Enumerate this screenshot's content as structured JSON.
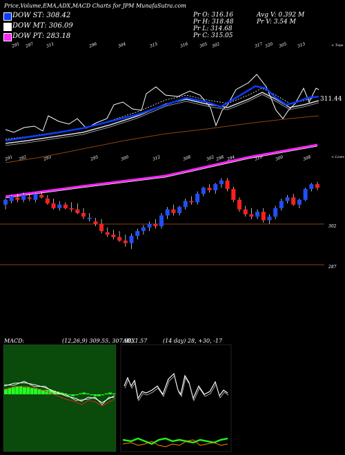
{
  "header": {
    "title": "Price,Volume,EMA,ADX,MACD Charts for JPM MunafaSutra.com"
  },
  "legend": [
    {
      "label": "DOW ST: 308.42",
      "color": "#0a3cff"
    },
    {
      "label": "DOW MT: 306.09",
      "color": "#ffffff"
    },
    {
      "label": "DOW PT: 283.18",
      "color": "#ff22ff"
    }
  ],
  "ohlc_stats": {
    "pr_o": "Pr   O: 316.16",
    "pr_h": "Pr   H: 318.48",
    "pr_l": "Pr   L: 314.68",
    "pr_c": "Pr   C: 315.05",
    "avg_v": "Avg V: 0.392  M",
    "pr_v": "Pr   V: 3.54  M"
  },
  "ema_panel": {
    "top_labels": [
      "291",
      "297",
      "311",
      "296",
      "304",
      "315",
      "316",
      "305",
      "302",
      "317",
      "320",
      "305",
      "313"
    ],
    "mid_labels": [
      "291",
      "292",
      "293",
      "295",
      "300",
      "312",
      "308",
      "302",
      "298",
      "294",
      "310",
      "300",
      "308"
    ],
    "right_top_label": "< Tops",
    "right_low_label": "< Lows",
    "last_value": "311.44"
  },
  "price_panel": {
    "level_labels": [
      "302",
      "287"
    ]
  },
  "macd_panel": {
    "title": "MACD:",
    "params": "(12,26,9) 309.55, 307.98, 1.57"
  },
  "adx_panel": {
    "title": "ADX",
    "params": "(14 day) 28, +30, -17"
  },
  "chart_data": [
    {
      "type": "line",
      "name": "EMA panel",
      "series": [
        {
          "name": "DOW ST",
          "color": "#0a3cff"
        },
        {
          "name": "DOW MT",
          "color": "#ffffff"
        },
        {
          "name": "DOW PT",
          "color": "#ff22ff"
        }
      ]
    },
    {
      "type": "candlestick",
      "name": "Price panel",
      "candles": [
        {
          "o": 282,
          "h": 287,
          "l": 278,
          "c": 286
        },
        {
          "o": 285,
          "h": 290,
          "l": 283,
          "c": 289
        },
        {
          "o": 288,
          "h": 291,
          "l": 284,
          "c": 286
        },
        {
          "o": 286,
          "h": 292,
          "l": 284,
          "c": 290
        },
        {
          "o": 288,
          "h": 291,
          "l": 285,
          "c": 287
        },
        {
          "o": 286,
          "h": 292,
          "l": 284,
          "c": 291
        },
        {
          "o": 290,
          "h": 293,
          "l": 287,
          "c": 288
        },
        {
          "o": 287,
          "h": 290,
          "l": 282,
          "c": 283
        },
        {
          "o": 283,
          "h": 287,
          "l": 278,
          "c": 279
        },
        {
          "o": 279,
          "h": 285,
          "l": 277,
          "c": 282
        },
        {
          "o": 282,
          "h": 284,
          "l": 278,
          "c": 279
        },
        {
          "o": 279,
          "h": 284,
          "l": 276,
          "c": 278
        },
        {
          "o": 278,
          "h": 283,
          "l": 274,
          "c": 275
        },
        {
          "o": 275,
          "h": 279,
          "l": 270,
          "c": 272
        },
        {
          "o": 270,
          "h": 275,
          "l": 268,
          "c": 271
        },
        {
          "o": 268,
          "h": 271,
          "l": 264,
          "c": 266
        },
        {
          "o": 266,
          "h": 270,
          "l": 258,
          "c": 260
        },
        {
          "o": 259,
          "h": 263,
          "l": 255,
          "c": 257
        },
        {
          "o": 257,
          "h": 261,
          "l": 253,
          "c": 255
        },
        {
          "o": 255,
          "h": 260,
          "l": 251,
          "c": 252
        },
        {
          "o": 252,
          "h": 257,
          "l": 247,
          "c": 250
        },
        {
          "o": 250,
          "h": 258,
          "l": 245,
          "c": 256
        },
        {
          "o": 256,
          "h": 262,
          "l": 253,
          "c": 260
        },
        {
          "o": 260,
          "h": 265,
          "l": 257,
          "c": 263
        },
        {
          "o": 263,
          "h": 268,
          "l": 260,
          "c": 266
        },
        {
          "o": 266,
          "h": 270,
          "l": 262,
          "c": 264
        },
        {
          "o": 264,
          "h": 275,
          "l": 262,
          "c": 273
        },
        {
          "o": 273,
          "h": 280,
          "l": 270,
          "c": 278
        },
        {
          "o": 278,
          "h": 282,
          "l": 273,
          "c": 275
        },
        {
          "o": 275,
          "h": 281,
          "l": 273,
          "c": 280
        },
        {
          "o": 280,
          "h": 287,
          "l": 278,
          "c": 285
        },
        {
          "o": 285,
          "h": 289,
          "l": 282,
          "c": 284
        },
        {
          "o": 284,
          "h": 293,
          "l": 282,
          "c": 291
        },
        {
          "o": 291,
          "h": 297,
          "l": 289,
          "c": 296
        },
        {
          "o": 296,
          "h": 299,
          "l": 292,
          "c": 294
        },
        {
          "o": 294,
          "h": 300,
          "l": 291,
          "c": 299
        },
        {
          "o": 299,
          "h": 304,
          "l": 296,
          "c": 302
        },
        {
          "o": 302,
          "h": 304,
          "l": 293,
          "c": 295
        },
        {
          "o": 295,
          "h": 297,
          "l": 284,
          "c": 286
        },
        {
          "o": 286,
          "h": 288,
          "l": 276,
          "c": 278
        },
        {
          "o": 278,
          "h": 281,
          "l": 272,
          "c": 274
        },
        {
          "o": 274,
          "h": 279,
          "l": 270,
          "c": 272
        },
        {
          "o": 272,
          "h": 278,
          "l": 270,
          "c": 276
        },
        {
          "o": 276,
          "h": 279,
          "l": 267,
          "c": 269
        },
        {
          "o": 269,
          "h": 274,
          "l": 266,
          "c": 272
        },
        {
          "o": 272,
          "h": 281,
          "l": 270,
          "c": 279
        },
        {
          "o": 279,
          "h": 287,
          "l": 277,
          "c": 285
        },
        {
          "o": 285,
          "h": 290,
          "l": 283,
          "c": 288
        },
        {
          "o": 288,
          "h": 291,
          "l": 281,
          "c": 282
        },
        {
          "o": 282,
          "h": 287,
          "l": 279,
          "c": 286
        },
        {
          "o": 286,
          "h": 296,
          "l": 285,
          "c": 295
        },
        {
          "o": 295,
          "h": 300,
          "l": 293,
          "c": 299
        },
        {
          "o": 299,
          "h": 301,
          "l": 294,
          "c": 296
        }
      ]
    },
    {
      "type": "area",
      "name": "MACD"
    },
    {
      "type": "line",
      "name": "ADX",
      "series": [
        {
          "name": "ADX",
          "color": "#ffffff"
        },
        {
          "name": "+DI",
          "color": "#22ee22"
        },
        {
          "name": "-DI",
          "color": "#ff8800"
        }
      ]
    }
  ]
}
